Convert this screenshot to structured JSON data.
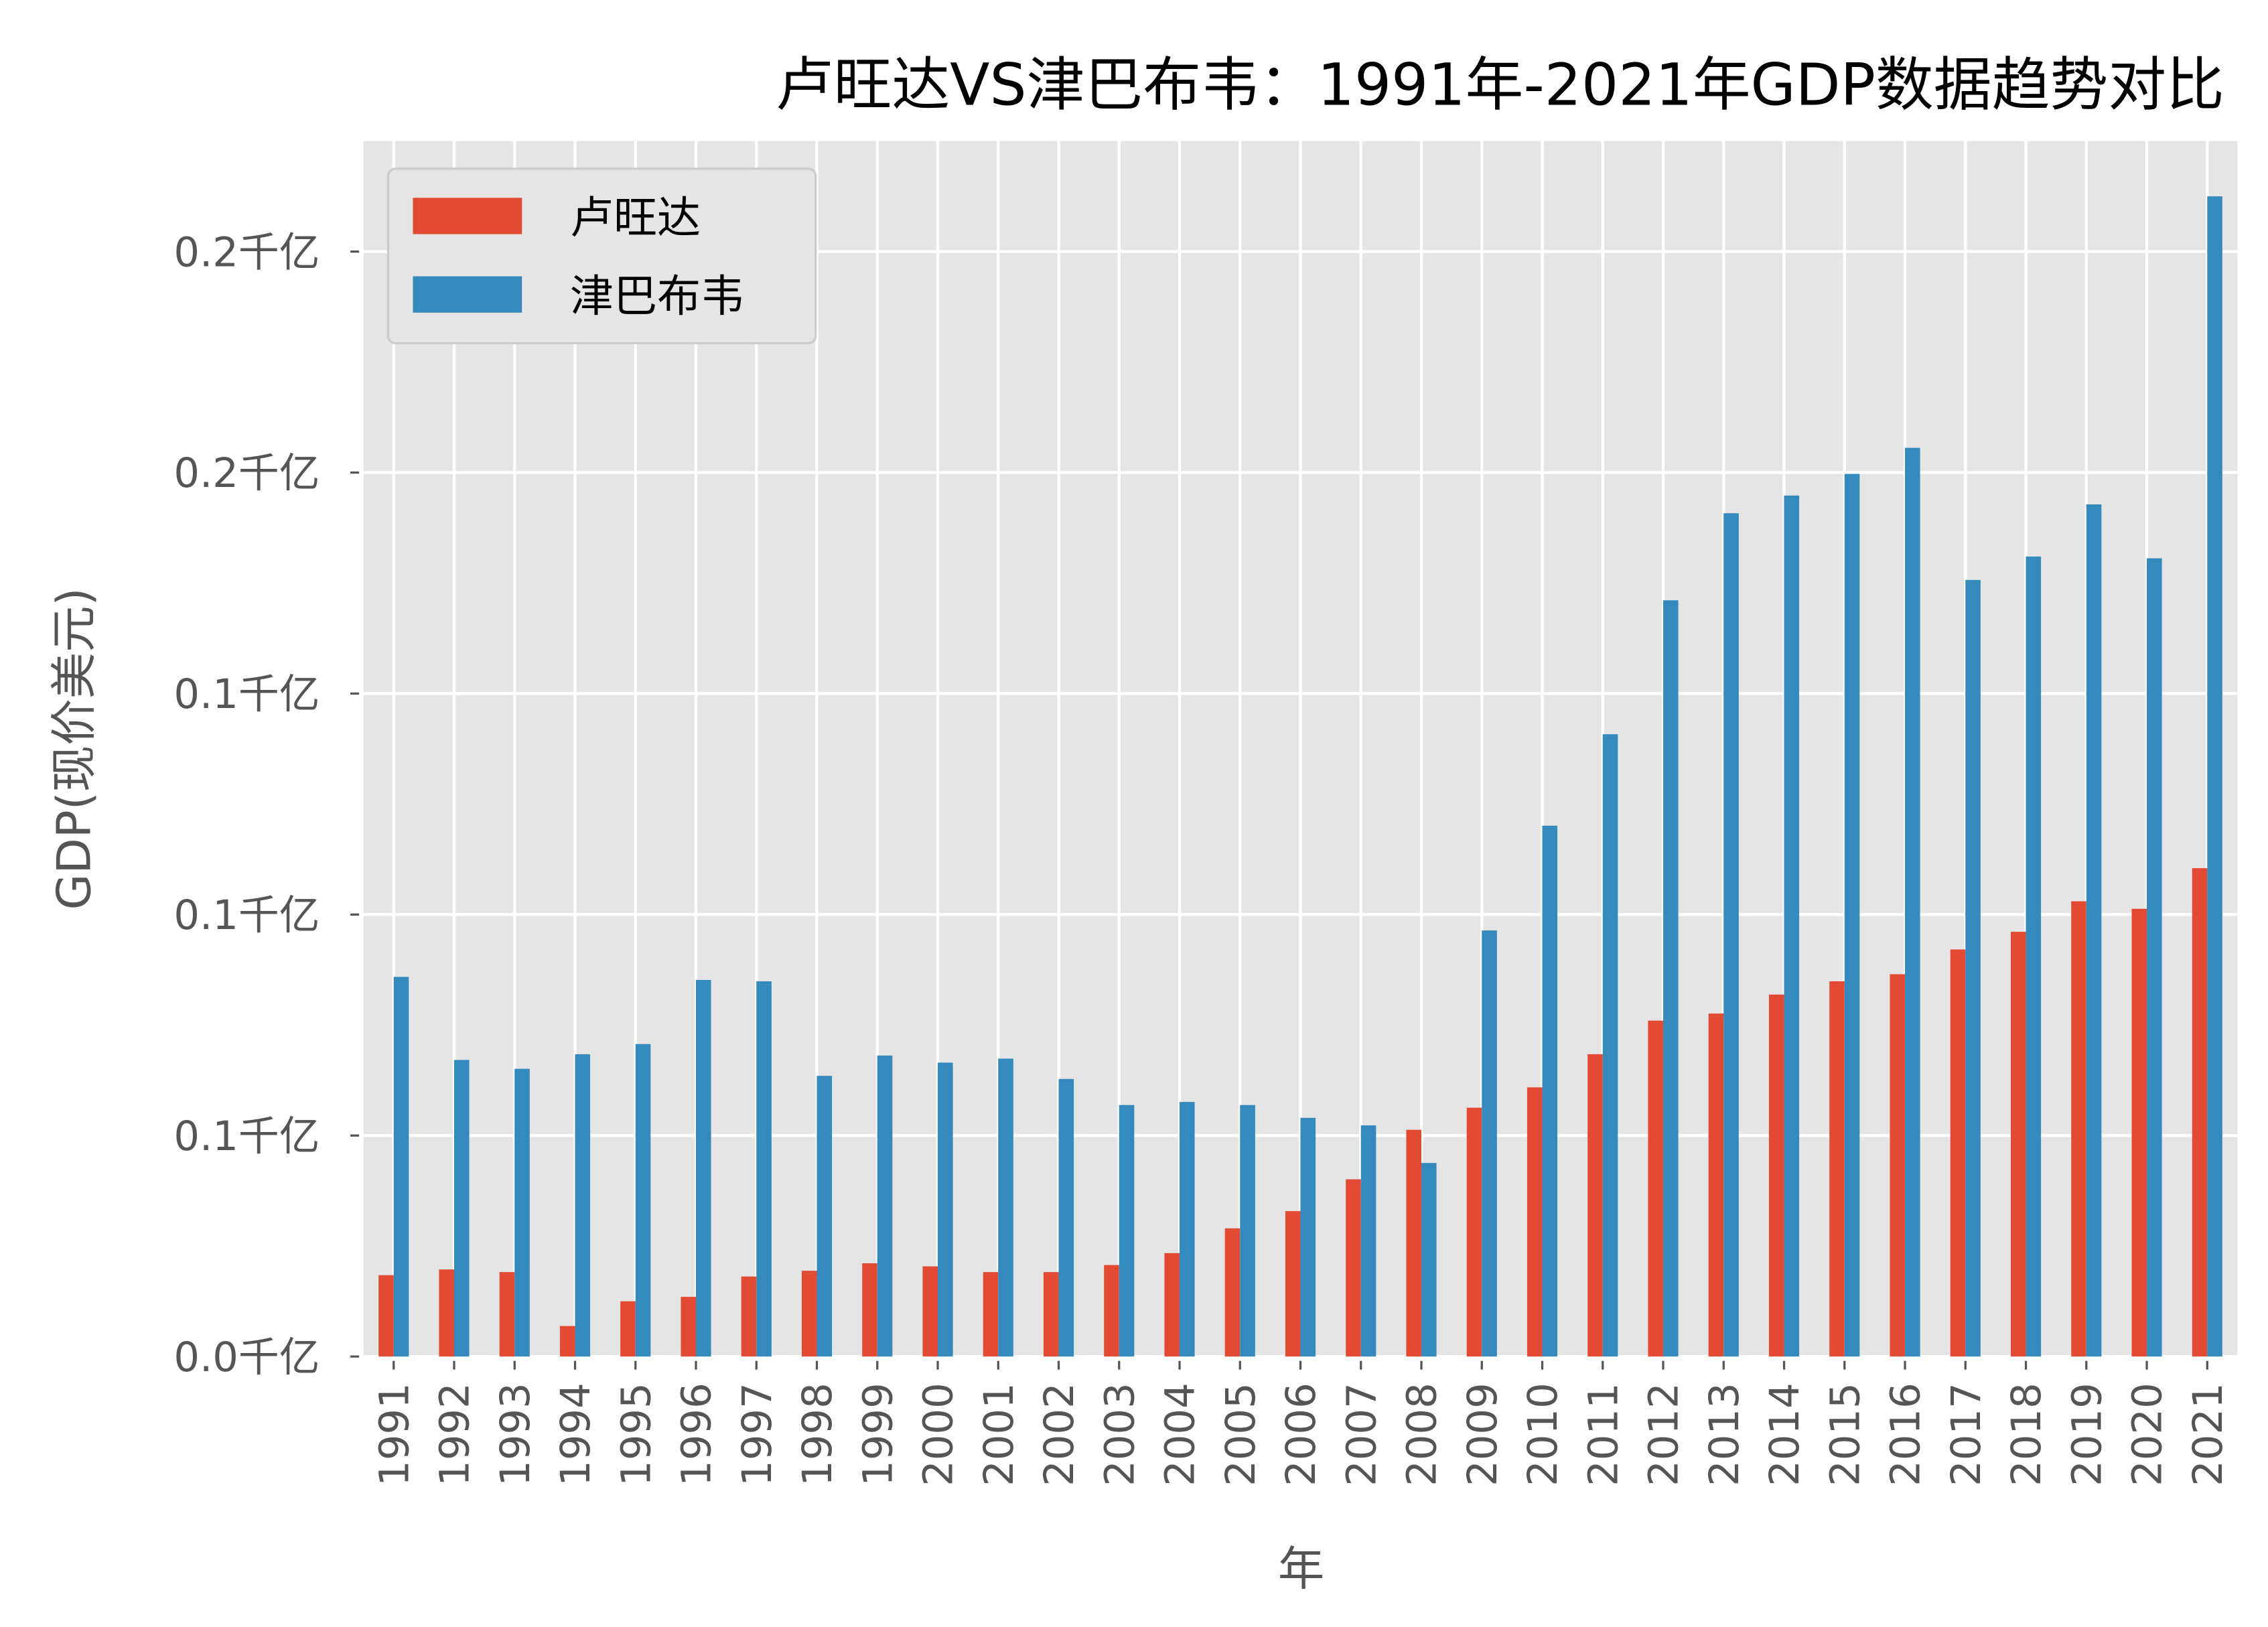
{
  "chart_data": {
    "type": "bar",
    "title": "卢旺达VS津巴布韦：1991年-2021年GDP数据趋势对比",
    "xlabel": "年",
    "ylabel": "GDP(现价美元)",
    "ylim": [
      0,
      0.275
    ],
    "yticks": [
      0,
      0.05,
      0.1,
      0.15,
      0.2,
      0.25
    ],
    "ytick_labels": [
      "0.0千亿",
      "0.1千亿",
      "0.1千亿",
      "0.1千亿",
      "0.2千亿",
      "0.2千亿"
    ],
    "grid": true,
    "legend_position": "top-left",
    "categories": [
      "1991",
      "1992",
      "1993",
      "1994",
      "1995",
      "1996",
      "1997",
      "1998",
      "1999",
      "2000",
      "2001",
      "2002",
      "2003",
      "2004",
      "2005",
      "2006",
      "2007",
      "2008",
      "2009",
      "2010",
      "2011",
      "2012",
      "2013",
      "2014",
      "2015",
      "2016",
      "2017",
      "2018",
      "2019",
      "2020",
      "2021"
    ],
    "series": [
      {
        "name": "卢旺达",
        "color": "#E24A33",
        "values": [
          0.0184,
          0.0197,
          0.0191,
          0.0069,
          0.0125,
          0.0135,
          0.0181,
          0.0194,
          0.0211,
          0.0204,
          0.0191,
          0.0191,
          0.0207,
          0.0234,
          0.029,
          0.0329,
          0.0401,
          0.0513,
          0.0563,
          0.0609,
          0.0684,
          0.076,
          0.0776,
          0.0819,
          0.0849,
          0.0865,
          0.0921,
          0.0961,
          0.103,
          0.1013,
          0.1105
        ]
      },
      {
        "name": "津巴布韦",
        "color": "#348ABD",
        "values": [
          0.0859,
          0.0671,
          0.0651,
          0.0684,
          0.0707,
          0.0852,
          0.0849,
          0.0635,
          0.0681,
          0.0665,
          0.0674,
          0.0628,
          0.0569,
          0.0576,
          0.0569,
          0.054,
          0.0523,
          0.0438,
          0.0964,
          0.1201,
          0.1408,
          0.1711,
          0.1908,
          0.1948,
          0.1997,
          0.2056,
          0.1757,
          0.181,
          0.1928,
          0.1806,
          0.2625
        ]
      }
    ],
    "background_color": "#E5E5E5"
  }
}
